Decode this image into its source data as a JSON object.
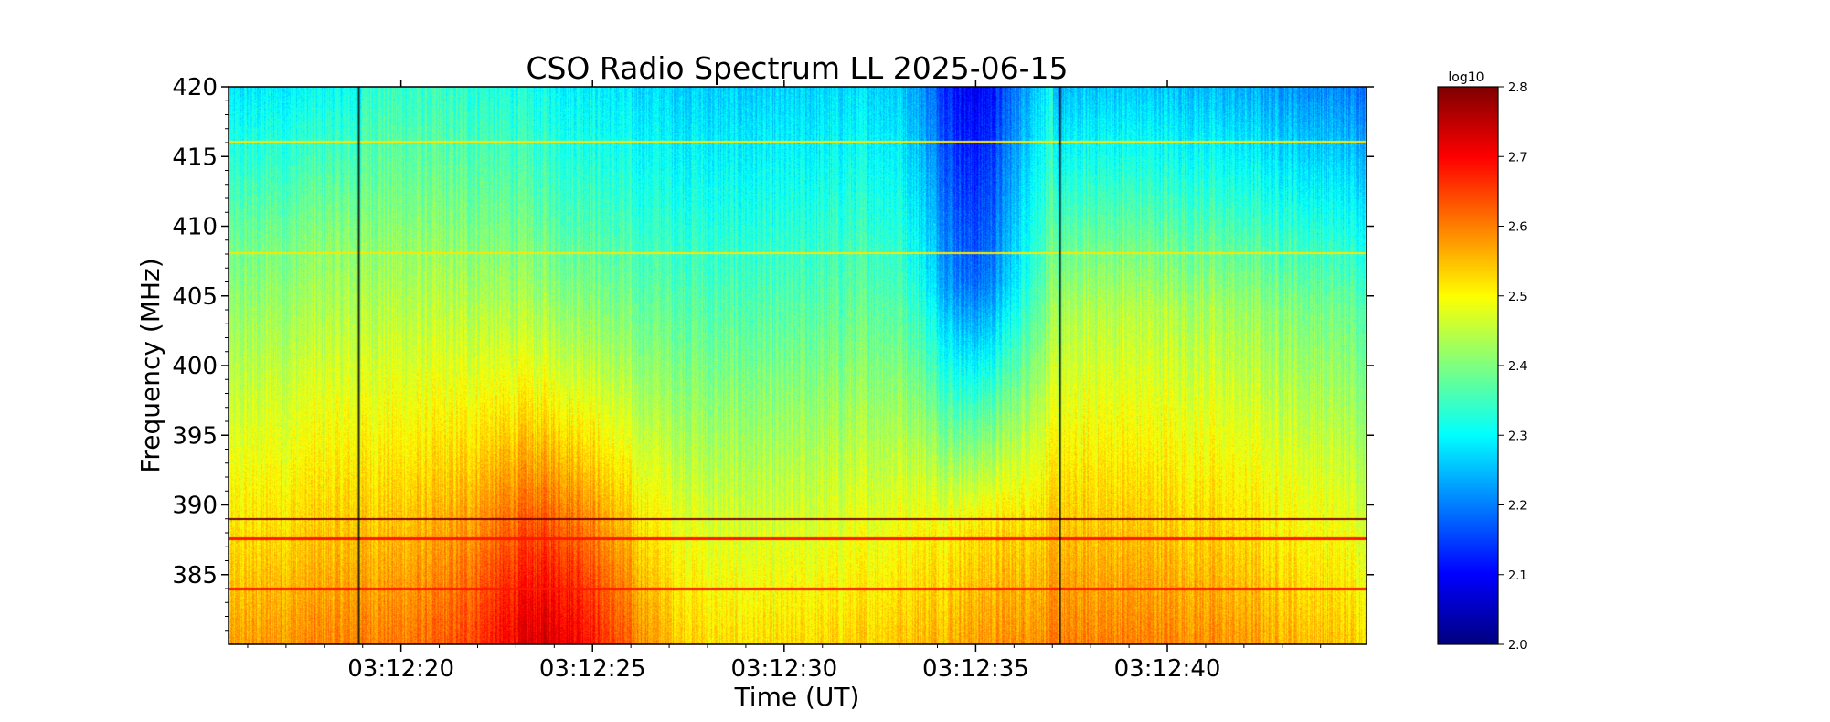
{
  "chart_data": {
    "type": "heatmap",
    "title": "CSO Radio Spectrum LL 2025-06-15",
    "xlabel": "Time (UT)",
    "ylabel": "Frequency (MHz)",
    "x_range": [
      "03:12:15.5",
      "03:12:45.2"
    ],
    "y_range": [
      380.0,
      420.0
    ],
    "x_ticks": [
      {
        "value": "03:12:20",
        "seconds": 20
      },
      {
        "value": "03:12:25",
        "seconds": 25
      },
      {
        "value": "03:12:30",
        "seconds": 30
      },
      {
        "value": "03:12:35",
        "seconds": 35
      },
      {
        "value": "03:12:40",
        "seconds": 40
      }
    ],
    "y_ticks": [
      385,
      390,
      395,
      400,
      405,
      410,
      415,
      420
    ],
    "colorbar": {
      "label": "log10",
      "colormap": "jet",
      "range": [
        2.0,
        2.8
      ],
      "ticks": [
        "2.0",
        "2.1",
        "2.2",
        "2.3",
        "2.4",
        "2.5",
        "2.6",
        "2.7",
        "2.8"
      ]
    },
    "features": {
      "horizontal_lines_mhz": [
        416.1,
        408.1,
        389.0,
        387.6,
        384.0
      ],
      "vertical_lines_seconds": [
        18.9,
        37.2
      ],
      "bright_region": {
        "time_seconds": [
          22,
          26
        ],
        "freq_mhz": [
          380,
          400
        ],
        "level": 2.7
      },
      "dark_region": {
        "time_seconds": [
          33.5,
          36.5
        ],
        "freq_mhz": [
          392,
          420
        ],
        "level": 2.1
      }
    }
  }
}
